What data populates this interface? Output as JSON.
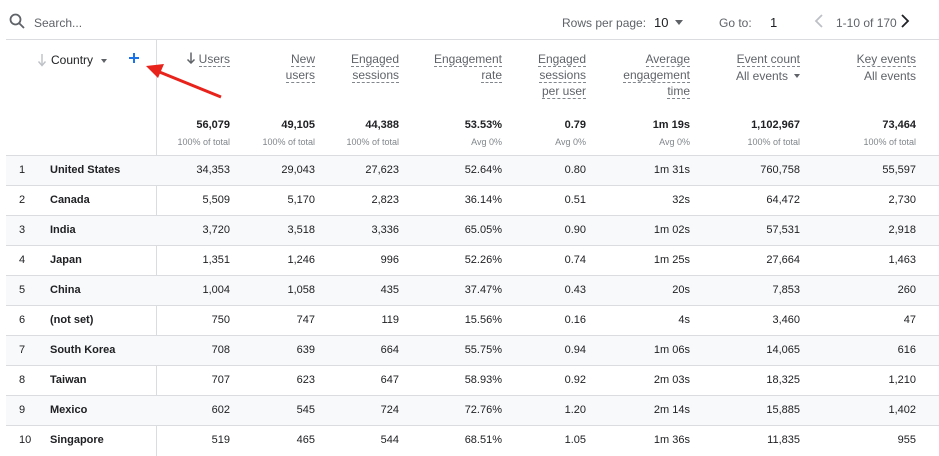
{
  "toolbar": {
    "search_placeholder": "Search...",
    "rows_per_page_label": "Rows per page:",
    "rows_per_page_value": "10",
    "goto_label": "Go to:",
    "goto_value": "1",
    "range_text": "1-10 of 170"
  },
  "dimension": {
    "label": "Country"
  },
  "columns": [
    {
      "key": "users",
      "lines": [
        "Users"
      ],
      "total": "56,079",
      "total_sub": "100% of total"
    },
    {
      "key": "new_users",
      "lines": [
        "New",
        "users"
      ],
      "total": "49,105",
      "total_sub": "100% of total"
    },
    {
      "key": "engaged_sessions",
      "lines": [
        "Engaged",
        "sessions"
      ],
      "total": "44,388",
      "total_sub": "100% of total"
    },
    {
      "key": "engagement_rate",
      "lines": [
        "Engagement",
        "rate"
      ],
      "total": "53.53%",
      "total_sub": "Avg 0%"
    },
    {
      "key": "engaged_sessions_per_user",
      "lines": [
        "Engaged",
        "sessions",
        "per user"
      ],
      "total": "0.79",
      "total_sub": "Avg 0%"
    },
    {
      "key": "avg_engagement_time",
      "lines": [
        "Average",
        "engagement",
        "time"
      ],
      "total": "1m 19s",
      "total_sub": "Avg 0%"
    },
    {
      "key": "event_count",
      "lines": [
        "Event count"
      ],
      "sub_label": "All events",
      "total": "1,102,967",
      "total_sub": "100% of total"
    },
    {
      "key": "key_events",
      "lines": [
        "Key events"
      ],
      "sub_label": "All events",
      "total": "73,464",
      "total_sub": "100% of total"
    }
  ],
  "rows": [
    {
      "rank": "1",
      "country": "United States",
      "values": [
        "34,353",
        "29,043",
        "27,623",
        "52.64%",
        "0.80",
        "1m 31s",
        "760,758",
        "55,597"
      ]
    },
    {
      "rank": "2",
      "country": "Canada",
      "values": [
        "5,509",
        "5,170",
        "2,823",
        "36.14%",
        "0.51",
        "32s",
        "64,472",
        "2,730"
      ]
    },
    {
      "rank": "3",
      "country": "India",
      "values": [
        "3,720",
        "3,518",
        "3,336",
        "65.05%",
        "0.90",
        "1m 02s",
        "57,531",
        "2,918"
      ]
    },
    {
      "rank": "4",
      "country": "Japan",
      "values": [
        "1,351",
        "1,246",
        "996",
        "52.26%",
        "0.74",
        "1m 25s",
        "27,664",
        "1,463"
      ]
    },
    {
      "rank": "5",
      "country": "China",
      "values": [
        "1,004",
        "1,058",
        "435",
        "37.47%",
        "0.43",
        "20s",
        "7,853",
        "260"
      ]
    },
    {
      "rank": "6",
      "country": "(not set)",
      "values": [
        "750",
        "747",
        "119",
        "15.56%",
        "0.16",
        "4s",
        "3,460",
        "47"
      ]
    },
    {
      "rank": "7",
      "country": "South Korea",
      "values": [
        "708",
        "639",
        "664",
        "55.75%",
        "0.94",
        "1m 06s",
        "14,065",
        "616"
      ]
    },
    {
      "rank": "8",
      "country": "Taiwan",
      "values": [
        "707",
        "623",
        "647",
        "58.93%",
        "0.92",
        "2m 03s",
        "18,325",
        "1,210"
      ]
    },
    {
      "rank": "9",
      "country": "Mexico",
      "values": [
        "602",
        "545",
        "724",
        "72.76%",
        "1.20",
        "2m 14s",
        "15,885",
        "1,402"
      ]
    },
    {
      "rank": "10",
      "country": "Singapore",
      "values": [
        "519",
        "465",
        "544",
        "68.51%",
        "1.05",
        "1m 36s",
        "11,835",
        "955"
      ]
    }
  ],
  "colors": {
    "accent_blue": "#1a73e8",
    "annotation_red": "#e8231c",
    "row_alt_bg": "#f8f9fa"
  }
}
